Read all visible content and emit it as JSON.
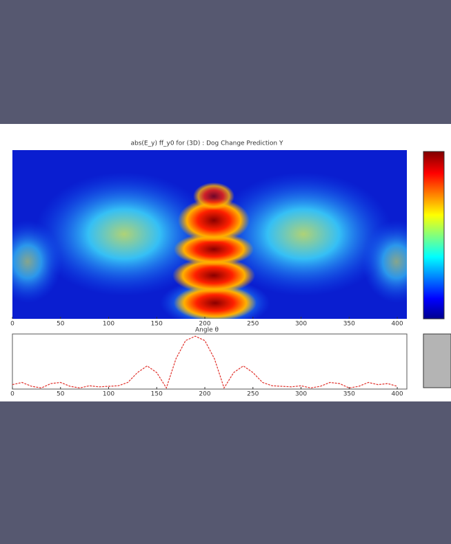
{
  "chart_data": [
    {
      "type": "heatmap",
      "title": "abs(E_y) ff_y0 for (3D) : Dog Change Prediction Y",
      "xlabel": "Angle θ",
      "xlim": [
        0,
        410
      ],
      "xticks": [
        0,
        50,
        100,
        150,
        200,
        250,
        300,
        350,
        400
      ]
    },
    {
      "type": "line",
      "xlim": [
        0,
        410
      ],
      "ylim": [
        0,
        1
      ],
      "xticks": [
        0,
        50,
        100,
        150,
        200,
        250,
        300,
        350,
        400
      ],
      "x": [
        0,
        10,
        20,
        30,
        40,
        50,
        60,
        70,
        80,
        90,
        100,
        110,
        120,
        130,
        140,
        150,
        160,
        170,
        180,
        190,
        200,
        210,
        220,
        230,
        240,
        250,
        260,
        270,
        280,
        290,
        300,
        310,
        320,
        330,
        340,
        350,
        360,
        370,
        380,
        390,
        400
      ],
      "series": [
        {
          "color": "#e0302a",
          "values": [
            0.08,
            0.12,
            0.05,
            0.02,
            0.1,
            0.12,
            0.05,
            0.02,
            0.06,
            0.04,
            0.05,
            0.06,
            0.12,
            0.3,
            0.42,
            0.3,
            0.02,
            0.55,
            0.88,
            0.96,
            0.88,
            0.55,
            0.02,
            0.3,
            0.42,
            0.3,
            0.12,
            0.06,
            0.05,
            0.04,
            0.06,
            0.02,
            0.05,
            0.12,
            0.1,
            0.02,
            0.05,
            0.12,
            0.08,
            0.1,
            0.05
          ]
        }
      ]
    }
  ]
}
